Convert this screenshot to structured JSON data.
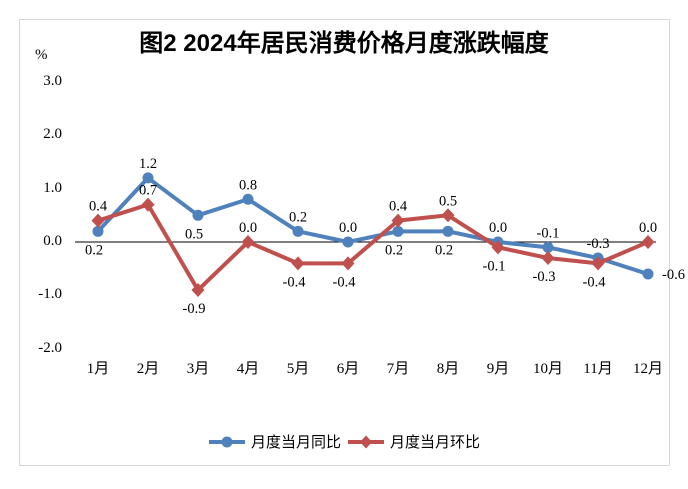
{
  "chart_data": {
    "type": "line",
    "title": "图2 2024年居民消费价格月度涨跌幅度",
    "unit_label": "%",
    "categories": [
      "1月",
      "2月",
      "3月",
      "4月",
      "5月",
      "6月",
      "7月",
      "8月",
      "9月",
      "10月",
      "11月",
      "12月"
    ],
    "series": [
      {
        "name": "月度当月同比",
        "color": "#4F81BD",
        "marker": "circle",
        "values": [
          0.2,
          1.2,
          0.5,
          0.8,
          0.2,
          0.0,
          0.2,
          0.2,
          0.0,
          -0.1,
          -0.3,
          -0.6
        ],
        "label_pos": [
          "below",
          "above",
          "below",
          "above",
          "above",
          "above",
          "below",
          "below",
          "above",
          "above",
          "above",
          "right"
        ]
      },
      {
        "name": "月度当月环比",
        "color": "#C0504D",
        "marker": "diamond",
        "values": [
          0.4,
          0.7,
          -0.9,
          0.0,
          -0.4,
          -0.4,
          0.4,
          0.5,
          -0.1,
          -0.3,
          -0.4,
          0.0
        ],
        "label_pos": [
          "above",
          "above",
          "below",
          "above",
          "below",
          "below",
          "above",
          "above",
          "below",
          "below",
          "below",
          "above"
        ]
      }
    ],
    "y_tick_labels": [
      "3.0",
      "2.0",
      "1.0",
      "0.0",
      "-1.0",
      "-2.0"
    ],
    "y_tick_values": [
      3.0,
      2.0,
      1.0,
      0.0,
      -1.0,
      -2.0
    ],
    "ylim": [
      -2.0,
      3.0
    ],
    "grid": false,
    "legend_position": "bottom",
    "axis_color": "#000000",
    "frame_border_color": "#d7d7d7",
    "background_color": "#ffffff"
  }
}
